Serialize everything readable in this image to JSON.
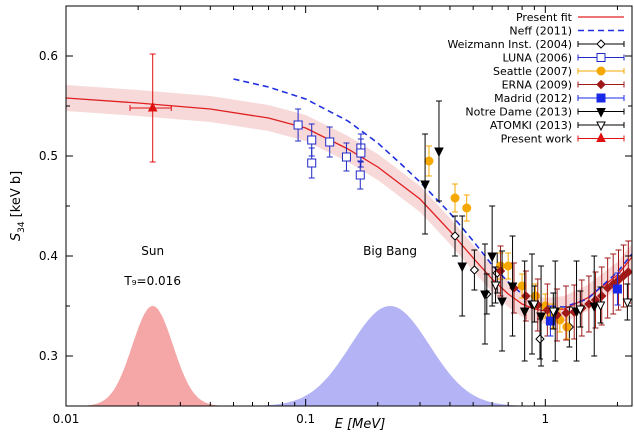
{
  "chart_data": {
    "type": "scatter",
    "xlabel": "E [MeV]",
    "ylabel_main": "S",
    "ylabel_sub": "34",
    "ylabel_unit": " [keV b]",
    "xscale": "log",
    "xlim": [
      0.01,
      2.3
    ],
    "ylim": [
      0.25,
      0.65
    ],
    "x_ticks": [
      {
        "v": 0.01,
        "label": "0.01"
      },
      {
        "v": 0.1,
        "label": "0.1"
      },
      {
        "v": 1,
        "label": "1"
      }
    ],
    "y_ticks": [
      {
        "v": 0.3,
        "label": "0.3"
      },
      {
        "v": 0.4,
        "label": "0.4"
      },
      {
        "v": 0.5,
        "label": "0.5"
      },
      {
        "v": 0.6,
        "label": "0.6"
      }
    ],
    "annotations": [
      {
        "text": "Sun",
        "x": 0.023,
        "y": 0.405
      },
      {
        "text": "T₉=0.016",
        "x": 0.023,
        "y": 0.375
      },
      {
        "text": "Big Bang",
        "x": 0.225,
        "y": 0.405
      }
    ],
    "colors": {
      "fit": "#e02020",
      "neff": "#2030e0",
      "weizmann": "#000000",
      "luna": "#2028c8",
      "seattle": "#f5a800",
      "erna": "#a01818",
      "madrid": "#1a28e8",
      "notre_dame": "#000000",
      "atomki": "#000000",
      "present": "#e01010",
      "sun_fill": "#f5a6a6",
      "bigbang_fill": "#b3b3f5",
      "band": "#f7d9d9"
    },
    "gamow_peaks": [
      {
        "name": "Sun",
        "center": 0.023,
        "sigma_log": 0.085,
        "height": 0.35
      },
      {
        "name": "Big Bang",
        "center": 0.225,
        "sigma_log": 0.165,
        "height": 0.35
      }
    ],
    "present_fit": {
      "x": [
        0.01,
        0.02,
        0.04,
        0.07,
        0.1,
        0.15,
        0.2,
        0.3,
        0.4,
        0.5,
        0.6,
        0.7,
        0.8,
        0.9,
        1.0,
        1.2,
        1.5,
        2.0,
        2.3
      ],
      "y": [
        0.558,
        0.553,
        0.547,
        0.538,
        0.528,
        0.507,
        0.489,
        0.457,
        0.425,
        0.398,
        0.377,
        0.362,
        0.352,
        0.347,
        0.345,
        0.347,
        0.358,
        0.381,
        0.399
      ],
      "band": 0.013
    },
    "neff_2011": {
      "x": [
        0.05,
        0.07,
        0.1,
        0.15,
        0.2,
        0.25,
        0.3,
        0.4,
        0.5,
        0.6,
        0.7,
        0.8,
        0.9,
        1.0,
        1.2,
        1.5,
        2.0,
        2.3
      ],
      "y": [
        0.577,
        0.569,
        0.557,
        0.535,
        0.513,
        0.492,
        0.474,
        0.443,
        0.415,
        0.391,
        0.374,
        0.362,
        0.354,
        0.35,
        0.349,
        0.357,
        0.384,
        0.402
      ]
    },
    "legend": [
      {
        "label": "Present fit",
        "key": "fit",
        "style": "line"
      },
      {
        "label": "Neff (2011)",
        "key": "neff",
        "style": "dashed"
      },
      {
        "label": "Weizmann Inst. (2004)",
        "key": "weizmann",
        "style": "diamond-open"
      },
      {
        "label": "LUNA (2006)",
        "key": "luna",
        "style": "square-open"
      },
      {
        "label": "Seattle (2007)",
        "key": "seattle",
        "style": "circle-filled"
      },
      {
        "label": "ERNA (2009)",
        "key": "erna",
        "style": "diamond-filled"
      },
      {
        "label": "Madrid (2012)",
        "key": "madrid",
        "style": "square-filled"
      },
      {
        "label": "Notre Dame (2013)",
        "key": "notre_dame",
        "style": "triangle-down-filled"
      },
      {
        "label": "ATOMKI (2013)",
        "key": "atomki",
        "style": "triangle-down-open"
      },
      {
        "label": "Present work",
        "key": "present",
        "style": "triangle-up-filled"
      }
    ],
    "series": [
      {
        "name": "Weizmann Inst. (2004)",
        "key": "weizmann",
        "marker": "diamond-open",
        "points": [
          {
            "x": 0.42,
            "y": 0.42,
            "err": 0.02
          },
          {
            "x": 0.506,
            "y": 0.386,
            "err": 0.02
          },
          {
            "x": 0.57,
            "y": 0.362,
            "err": 0.02
          },
          {
            "x": 0.63,
            "y": 0.383,
            "err": 0.02
          },
          {
            "x": 0.95,
            "y": 0.317,
            "err": 0.02
          },
          {
            "x": 1.26,
            "y": 0.329,
            "err": 0.02
          }
        ]
      },
      {
        "name": "LUNA (2006)",
        "key": "luna",
        "marker": "square-open",
        "points": [
          {
            "x": 0.093,
            "y": 0.531,
            "err": 0.016
          },
          {
            "x": 0.106,
            "y": 0.493,
            "err": 0.015
          },
          {
            "x": 0.106,
            "y": 0.516,
            "err": 0.016
          },
          {
            "x": 0.126,
            "y": 0.514,
            "err": 0.015
          },
          {
            "x": 0.148,
            "y": 0.499,
            "err": 0.014
          },
          {
            "x": 0.169,
            "y": 0.481,
            "err": 0.014
          },
          {
            "x": 0.17,
            "y": 0.508,
            "err": 0.014
          },
          {
            "x": 0.17,
            "y": 0.503,
            "err": 0.014
          }
        ]
      },
      {
        "name": "Seattle (2007)",
        "key": "seattle",
        "marker": "circle-filled",
        "points": [
          {
            "x": 0.327,
            "y": 0.495,
            "err": 0.015
          },
          {
            "x": 0.42,
            "y": 0.458,
            "err": 0.014
          },
          {
            "x": 0.47,
            "y": 0.448,
            "err": 0.013
          },
          {
            "x": 0.65,
            "y": 0.39,
            "err": 0.013
          },
          {
            "x": 0.7,
            "y": 0.39,
            "err": 0.013
          },
          {
            "x": 0.8,
            "y": 0.37,
            "err": 0.012
          },
          {
            "x": 0.91,
            "y": 0.36,
            "err": 0.012
          },
          {
            "x": 1.0,
            "y": 0.35,
            "err": 0.012
          },
          {
            "x": 1.07,
            "y": 0.34,
            "err": 0.012
          },
          {
            "x": 1.15,
            "y": 0.336,
            "err": 0.012
          },
          {
            "x": 1.23,
            "y": 0.329,
            "err": 0.012
          }
        ]
      },
      {
        "name": "ERNA (2009)",
        "key": "erna",
        "marker": "diamond-filled",
        "points": [
          {
            "x": 0.65,
            "y": 0.385,
            "err": 0.025
          },
          {
            "x": 0.74,
            "y": 0.368,
            "err": 0.025
          },
          {
            "x": 0.83,
            "y": 0.36,
            "err": 0.025
          },
          {
            "x": 0.93,
            "y": 0.351,
            "err": 0.026
          },
          {
            "x": 1.02,
            "y": 0.346,
            "err": 0.026
          },
          {
            "x": 1.12,
            "y": 0.341,
            "err": 0.026
          },
          {
            "x": 1.22,
            "y": 0.343,
            "err": 0.027
          },
          {
            "x": 1.32,
            "y": 0.344,
            "err": 0.027
          },
          {
            "x": 1.42,
            "y": 0.348,
            "err": 0.028
          },
          {
            "x": 1.52,
            "y": 0.352,
            "err": 0.028
          },
          {
            "x": 1.62,
            "y": 0.356,
            "err": 0.028
          },
          {
            "x": 1.72,
            "y": 0.36,
            "err": 0.029
          },
          {
            "x": 1.82,
            "y": 0.368,
            "err": 0.03
          },
          {
            "x": 1.92,
            "y": 0.372,
            "err": 0.03
          },
          {
            "x": 2.02,
            "y": 0.376,
            "err": 0.03
          },
          {
            "x": 2.12,
            "y": 0.38,
            "err": 0.031
          },
          {
            "x": 2.22,
            "y": 0.384,
            "err": 0.031
          }
        ]
      },
      {
        "name": "Madrid (2012)",
        "key": "madrid",
        "marker": "square-filled",
        "points": [
          {
            "x": 1.05,
            "y": 0.335,
            "err": 0.015
          },
          {
            "x": 2.0,
            "y": 0.367,
            "err": 0.016
          }
        ]
      },
      {
        "name": "Notre Dame (2013)",
        "key": "notre_dame",
        "marker": "triangle-down-filled",
        "points": [
          {
            "x": 0.315,
            "y": 0.472,
            "err": 0.05
          },
          {
            "x": 0.36,
            "y": 0.505,
            "err": 0.05
          },
          {
            "x": 0.45,
            "y": 0.39,
            "err": 0.05
          },
          {
            "x": 0.56,
            "y": 0.362,
            "err": 0.05
          },
          {
            "x": 0.6,
            "y": 0.4,
            "err": 0.05
          },
          {
            "x": 0.66,
            "y": 0.355,
            "err": 0.05
          },
          {
            "x": 0.73,
            "y": 0.37,
            "err": 0.05
          },
          {
            "x": 0.82,
            "y": 0.345,
            "err": 0.05
          },
          {
            "x": 0.88,
            "y": 0.352,
            "err": 0.05
          },
          {
            "x": 0.96,
            "y": 0.34,
            "err": 0.05
          },
          {
            "x": 1.1,
            "y": 0.345,
            "err": 0.05
          },
          {
            "x": 1.35,
            "y": 0.345,
            "err": 0.05
          },
          {
            "x": 1.6,
            "y": 0.35,
            "err": 0.05
          }
        ]
      },
      {
        "name": "ATOMKI (2013)",
        "key": "atomki",
        "marker": "triangle-down-open",
        "points": [
          {
            "x": 0.62,
            "y": 0.371,
            "err": 0.018
          },
          {
            "x": 0.9,
            "y": 0.352,
            "err": 0.018
          },
          {
            "x": 1.08,
            "y": 0.345,
            "err": 0.018
          },
          {
            "x": 1.4,
            "y": 0.347,
            "err": 0.018
          },
          {
            "x": 1.7,
            "y": 0.351,
            "err": 0.018
          },
          {
            "x": 2.2,
            "y": 0.354,
            "err": 0.018
          }
        ]
      },
      {
        "name": "Present work",
        "key": "present",
        "marker": "triangle-up-filled",
        "points": [
          {
            "x": 0.023,
            "y": 0.548,
            "err": 0.054,
            "xerr_lo": 0.0045,
            "xerr_hi": 0.0045
          }
        ]
      }
    ]
  }
}
